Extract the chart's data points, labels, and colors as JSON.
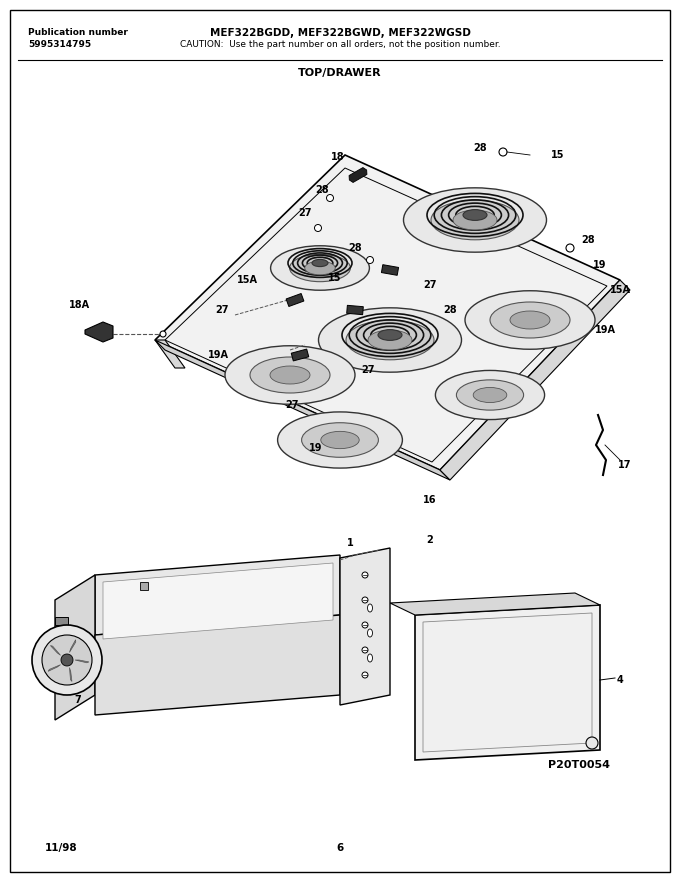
{
  "title_model": "MEF322BGDD, MEF322BGWD, MEF322WGSD",
  "title_caution": "CAUTION:  Use the part number on all orders, not the position number.",
  "pub_label": "Publication number",
  "pub_number": "5995314795",
  "section_title": "TOP/DRAWER",
  "footer_left": "11/98",
  "footer_center": "6",
  "part_code": "P20T0054",
  "bg_color": "#ffffff",
  "line_color": "#000000",
  "fig_width": 6.8,
  "fig_height": 8.82,
  "dpi": 100
}
